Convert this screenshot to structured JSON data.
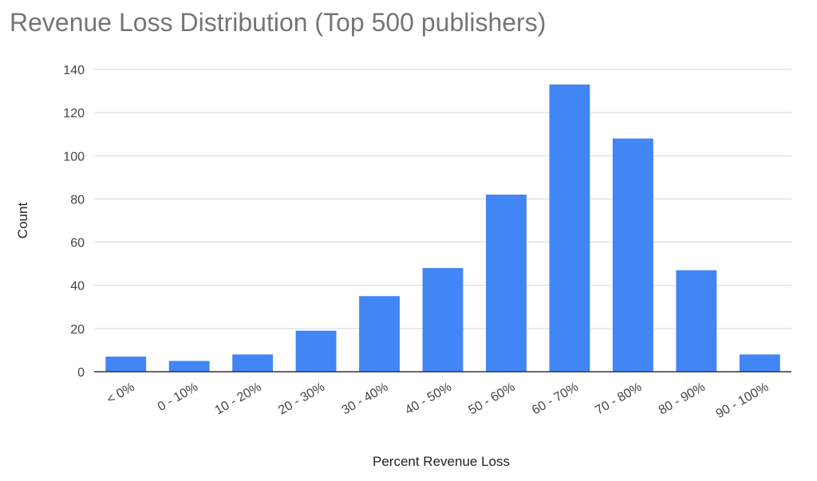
{
  "chart_data": {
    "type": "bar",
    "title": "Revenue Loss Distribution (Top 500 publishers)",
    "xlabel": "Percent Revenue Loss",
    "ylabel": "Count",
    "categories": [
      "< 0%",
      "0 - 10%",
      "10 - 20%",
      "20 - 30%",
      "30 - 40%",
      "40 - 50%",
      "50 - 60%",
      "60 - 70%",
      "70 - 80%",
      "80 - 90%",
      "90 - 100%"
    ],
    "values": [
      7,
      5,
      8,
      19,
      35,
      48,
      82,
      133,
      108,
      47,
      8
    ],
    "ylim": [
      0,
      140
    ],
    "yticks": [
      0,
      20,
      40,
      60,
      80,
      100,
      120,
      140
    ],
    "grid": true,
    "legend": "none",
    "bar_color": "#4285f4"
  }
}
